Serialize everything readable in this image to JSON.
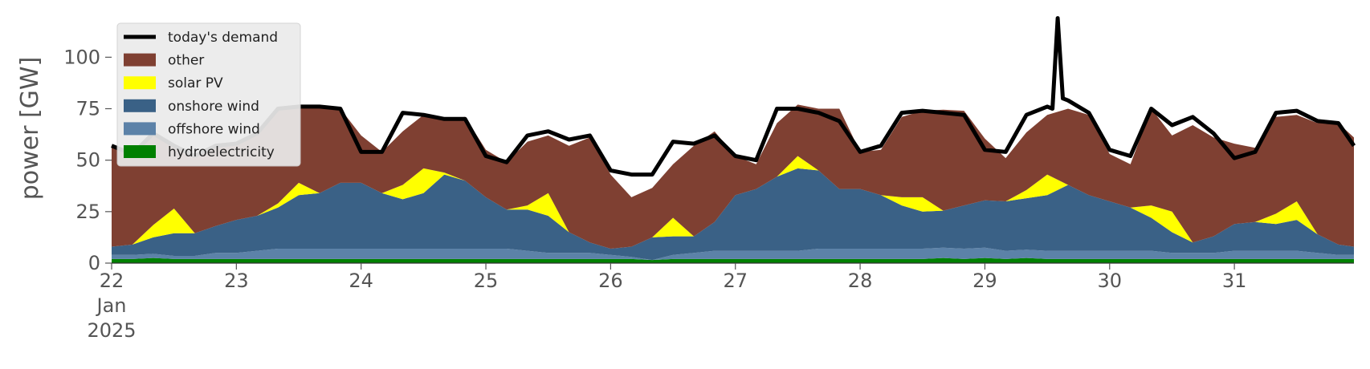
{
  "chart_data": {
    "type": "area",
    "ylabel": "power [GW]",
    "ylim": [
      0,
      120
    ],
    "xlim": [
      "2025-01-22T00:00",
      "2025-01-31T23:00"
    ],
    "yticks": [
      0,
      25,
      50,
      75,
      100
    ],
    "xticks": [
      {
        "value": "2025-01-22",
        "label": [
          "22",
          "Jan",
          "2025"
        ]
      },
      {
        "value": "2025-01-23",
        "label": [
          "23"
        ]
      },
      {
        "value": "2025-01-24",
        "label": [
          "24"
        ]
      },
      {
        "value": "2025-01-25",
        "label": [
          "25"
        ]
      },
      {
        "value": "2025-01-26",
        "label": [
          "26"
        ]
      },
      {
        "value": "2025-01-27",
        "label": [
          "27"
        ]
      },
      {
        "value": "2025-01-28",
        "label": [
          "28"
        ]
      },
      {
        "value": "2025-01-29",
        "label": [
          "29"
        ]
      },
      {
        "value": "2025-01-30",
        "label": [
          "30"
        ]
      },
      {
        "value": "2025-01-31",
        "label": [
          "31"
        ]
      }
    ],
    "grid": false,
    "legend_position": "top-left",
    "background": "#ffffff",
    "x_sample_times": [
      "2025-01-22T00:00",
      "2025-01-22T04:00",
      "2025-01-22T08:00",
      "2025-01-22T12:00",
      "2025-01-22T16:00",
      "2025-01-22T20:00",
      "2025-01-23T00:00",
      "2025-01-23T04:00",
      "2025-01-23T08:00",
      "2025-01-23T12:00",
      "2025-01-23T16:00",
      "2025-01-23T20:00",
      "2025-01-24T00:00",
      "2025-01-24T04:00",
      "2025-01-24T08:00",
      "2025-01-24T12:00",
      "2025-01-24T16:00",
      "2025-01-24T20:00",
      "2025-01-25T00:00",
      "2025-01-25T04:00",
      "2025-01-25T08:00",
      "2025-01-25T12:00",
      "2025-01-25T16:00",
      "2025-01-25T20:00",
      "2025-01-26T00:00",
      "2025-01-26T04:00",
      "2025-01-26T08:00",
      "2025-01-26T12:00",
      "2025-01-26T16:00",
      "2025-01-26T20:00",
      "2025-01-27T00:00",
      "2025-01-27T04:00",
      "2025-01-27T08:00",
      "2025-01-27T12:00",
      "2025-01-27T16:00",
      "2025-01-27T20:00",
      "2025-01-28T00:00",
      "2025-01-28T04:00",
      "2025-01-28T08:00",
      "2025-01-28T12:00",
      "2025-01-28T16:00",
      "2025-01-28T20:00",
      "2025-01-29T00:00",
      "2025-01-29T04:00",
      "2025-01-29T08:00",
      "2025-01-29T12:00",
      "2025-01-29T16:00",
      "2025-01-29T20:00",
      "2025-01-30T00:00",
      "2025-01-30T04:00",
      "2025-01-30T08:00",
      "2025-01-30T12:00",
      "2025-01-30T16:00",
      "2025-01-30T20:00",
      "2025-01-31T00:00",
      "2025-01-31T04:00",
      "2025-01-31T08:00",
      "2025-01-31T12:00",
      "2025-01-31T16:00",
      "2025-01-31T20:00",
      "2025-01-31T23:00"
    ],
    "demand_times": [
      "2025-01-22T00:00",
      "2025-01-22T04:00",
      "2025-01-22T08:00",
      "2025-01-22T12:00",
      "2025-01-22T16:00",
      "2025-01-22T20:00",
      "2025-01-23T00:00",
      "2025-01-23T04:00",
      "2025-01-23T08:00",
      "2025-01-23T12:00",
      "2025-01-23T16:00",
      "2025-01-23T20:00",
      "2025-01-24T00:00",
      "2025-01-24T04:00",
      "2025-01-24T08:00",
      "2025-01-24T12:00",
      "2025-01-24T16:00",
      "2025-01-24T20:00",
      "2025-01-25T00:00",
      "2025-01-25T04:00",
      "2025-01-25T08:00",
      "2025-01-25T12:00",
      "2025-01-25T16:00",
      "2025-01-25T20:00",
      "2025-01-26T00:00",
      "2025-01-26T04:00",
      "2025-01-26T08:00",
      "2025-01-26T12:00",
      "2025-01-26T16:00",
      "2025-01-26T20:00",
      "2025-01-27T00:00",
      "2025-01-27T04:00",
      "2025-01-27T08:00",
      "2025-01-27T12:00",
      "2025-01-27T16:00",
      "2025-01-27T20:00",
      "2025-01-28T00:00",
      "2025-01-28T04:00",
      "2025-01-28T08:00",
      "2025-01-28T12:00",
      "2025-01-28T16:00",
      "2025-01-28T20:00",
      "2025-01-29T00:00",
      "2025-01-29T04:00",
      "2025-01-29T08:00",
      "2025-01-29T12:00",
      "2025-01-29T16:00",
      "2025-01-29T20:00",
      "2025-01-30T00:00",
      "2025-01-30T04:00",
      "2025-01-30T08:00",
      "2025-01-30T12:00",
      "2025-01-30T16:00",
      "2025-01-30T20:00",
      "2025-01-31T00:00",
      "2025-01-31T04:00",
      "2025-01-31T08:00",
      "2025-01-31T12:00",
      "2025-01-31T16:00",
      "2025-01-31T20:00",
      "2025-01-31T23:00",
      "2025-01-29T13:00",
      "2025-01-29T14:00",
      "2025-01-29T15:00"
    ],
    "series": [
      {
        "name": "hydroelectricity",
        "color": "#008000",
        "kind": "area",
        "values": [
          2,
          2,
          2.5,
          2,
          2,
          2,
          2,
          2,
          2,
          2,
          2,
          2,
          2,
          2,
          2,
          2,
          2,
          2,
          2,
          2,
          2,
          2,
          2,
          2,
          2,
          2,
          1.5,
          2,
          2,
          2,
          2,
          2,
          2,
          2,
          2,
          2,
          2,
          2,
          2,
          2,
          2.5,
          2,
          2.5,
          2,
          2.5,
          2,
          2,
          2,
          2,
          2,
          2,
          2,
          2,
          2,
          2,
          2,
          2,
          2,
          2,
          2,
          2
        ]
      },
      {
        "name": "offshore wind",
        "color": "#5c82a8",
        "kind": "area",
        "values": [
          2,
          2,
          2,
          1.5,
          1.5,
          3,
          3,
          4,
          5,
          5,
          5,
          5,
          5,
          5,
          5,
          5,
          5,
          5,
          5,
          5,
          4,
          3,
          3,
          3,
          2,
          1,
          0,
          2,
          3,
          4,
          4,
          4,
          4,
          4,
          5,
          5,
          5,
          5,
          5,
          5,
          5,
          5,
          5,
          4,
          4,
          4,
          4,
          4,
          4,
          4,
          4,
          3,
          3,
          3,
          4,
          4,
          4,
          4,
          3,
          2,
          2
        ]
      },
      {
        "name": "onshore wind",
        "color": "#3a6186",
        "kind": "area",
        "values": [
          4,
          5,
          8,
          11,
          11,
          13,
          16,
          17,
          20,
          26,
          27,
          32,
          32,
          27,
          24,
          27,
          36,
          33,
          25,
          19,
          20,
          18,
          10,
          5,
          3,
          5,
          11,
          9,
          8,
          14,
          27,
          30,
          36,
          40,
          38,
          29,
          29,
          26,
          21,
          18,
          18,
          21,
          23,
          24,
          25,
          27,
          32,
          27,
          24,
          21,
          16,
          10,
          5,
          8,
          13,
          14,
          13,
          15,
          9,
          5,
          4
        ]
      },
      {
        "name": "solar PV",
        "color": "#ffff00",
        "kind": "area",
        "values": [
          0,
          0,
          6,
          12,
          0,
          0,
          0,
          0,
          2,
          6,
          0,
          0,
          0,
          0,
          7,
          12,
          1,
          0,
          0,
          0,
          2,
          11,
          0,
          0,
          0,
          0,
          0,
          9,
          0,
          0,
          0,
          0,
          0,
          6,
          0,
          0,
          0,
          0,
          4,
          7,
          0,
          0,
          0,
          0,
          4,
          10,
          0,
          0,
          0,
          0,
          6,
          10,
          0,
          0,
          0,
          0,
          5,
          9,
          0,
          0,
          0
        ]
      },
      {
        "name": "other",
        "color": "#7f4032",
        "kind": "area",
        "values": [
          49,
          44,
          45,
          30,
          37,
          40,
          38,
          40,
          46,
          37,
          42,
          36,
          23,
          20,
          26,
          26,
          26,
          31,
          23,
          23,
          31,
          28,
          42,
          51,
          36,
          24,
          24,
          26,
          44,
          44,
          19,
          12,
          26,
          25,
          30,
          39,
          18,
          22,
          39,
          42,
          49,
          46,
          30,
          21,
          28,
          29,
          37,
          39,
          23,
          21,
          47,
          37,
          57,
          48,
          39,
          36,
          47,
          42,
          54,
          59,
          53
        ]
      },
      {
        "name": "today's demand",
        "color": "#000000",
        "kind": "line",
        "values": [
          57,
          53,
          63,
          57,
          52,
          57,
          58,
          63,
          75,
          76,
          76,
          75,
          54,
          54,
          73,
          72,
          70,
          70,
          52,
          49,
          62,
          64,
          60,
          62,
          45,
          43,
          43,
          59,
          58,
          62,
          52,
          50,
          75,
          75,
          73,
          69,
          54,
          57,
          73,
          74,
          73,
          72,
          55,
          54,
          72,
          76,
          79,
          73,
          55,
          52,
          75,
          67,
          71,
          63,
          51,
          54,
          73,
          74,
          69,
          68,
          57,
          75,
          119,
          80
        ]
      }
    ]
  }
}
